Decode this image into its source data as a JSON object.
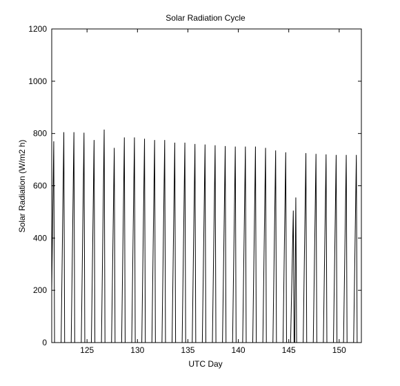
{
  "chart_data": {
    "type": "line",
    "title": "Solar Radiation Cycle",
    "xlabel": "UTC Day",
    "ylabel": "Solar Radiation (W/m2 h)",
    "xlim": [
      121.5,
      152.2
    ],
    "ylim": [
      0,
      1200
    ],
    "x_ticks": [
      125,
      130,
      135,
      140,
      145,
      150
    ],
    "y_ticks": [
      0,
      200,
      400,
      600,
      800,
      1000,
      1200
    ],
    "grid": false,
    "legend": "none",
    "colors": {
      "line": "#000000",
      "axes": "#000000",
      "background": "#ffffff"
    },
    "series": [
      {
        "daily_peaks": [
          {
            "day": 121.7,
            "peak": 770
          },
          {
            "day": 122.7,
            "peak": 805
          },
          {
            "day": 123.7,
            "peak": 805
          },
          {
            "day": 124.7,
            "peak": 803
          },
          {
            "day": 125.7,
            "peak": 775
          },
          {
            "day": 126.7,
            "peak": 815
          },
          {
            "day": 127.7,
            "peak": 745
          },
          {
            "day": 128.7,
            "peak": 785
          },
          {
            "day": 129.7,
            "peak": 785
          },
          {
            "day": 130.7,
            "peak": 780
          },
          {
            "day": 131.7,
            "peak": 775
          },
          {
            "day": 132.7,
            "peak": 775
          },
          {
            "day": 133.7,
            "peak": 765
          },
          {
            "day": 134.7,
            "peak": 765
          },
          {
            "day": 135.7,
            "peak": 760
          },
          {
            "day": 136.7,
            "peak": 758
          },
          {
            "day": 137.7,
            "peak": 755
          },
          {
            "day": 138.7,
            "peak": 752
          },
          {
            "day": 139.7,
            "peak": 750
          },
          {
            "day": 140.7,
            "peak": 750
          },
          {
            "day": 141.7,
            "peak": 750
          },
          {
            "day": 142.7,
            "peak": 745
          },
          {
            "day": 143.7,
            "peak": 735
          },
          {
            "day": 144.7,
            "peak": 728
          },
          {
            "day": 145.45,
            "peak": 505
          },
          {
            "day": 145.7,
            "peak": 555
          },
          {
            "day": 146.7,
            "peak": 725
          },
          {
            "day": 147.7,
            "peak": 722
          },
          {
            "day": 148.7,
            "peak": 720
          },
          {
            "day": 149.7,
            "peak": 718
          },
          {
            "day": 150.7,
            "peak": 718
          },
          {
            "day": 151.7,
            "peak": 718
          }
        ]
      }
    ]
  }
}
